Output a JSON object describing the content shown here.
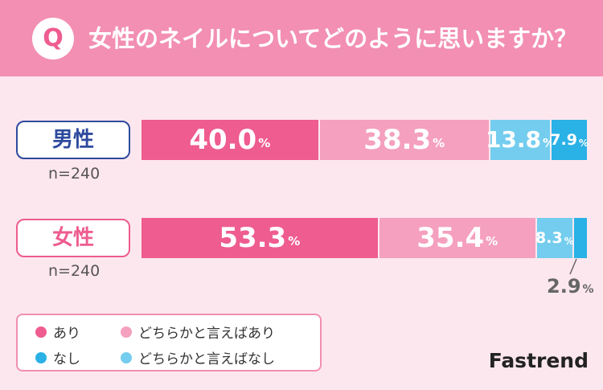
{
  "header": {
    "badge": "Q",
    "title": "女性のネイルについてどのように思いますか？"
  },
  "colors": {
    "header_bg": "#f28fb2",
    "background": "#fde7ee",
    "ari": "#ee5c90",
    "dochira_ari": "#f4a0be",
    "dochira_nashi": "#74cdee",
    "nashi": "#2ab1e6"
  },
  "chart_data": {
    "type": "bar",
    "orientation": "horizontal",
    "stacked": true,
    "unit": "%",
    "categories": [
      "男性",
      "女性"
    ],
    "sample_sizes": [
      "n=240",
      "n=240"
    ],
    "series": [
      {
        "name": "あり",
        "values": [
          40.0,
          53.3
        ]
      },
      {
        "name": "どちらかと言えばあり",
        "values": [
          38.3,
          35.4
        ]
      },
      {
        "name": "どちらかと言えばなし",
        "values": [
          13.8,
          8.3
        ]
      },
      {
        "name": "なし",
        "values": [
          7.9,
          2.9
        ]
      }
    ],
    "labels": [
      [
        "40.0",
        "38.3",
        "13.8",
        "7.9"
      ],
      [
        "53.3",
        "35.4",
        "8.3",
        "2.9"
      ]
    ],
    "legend_position": "bottom-left"
  },
  "legend": {
    "items": [
      {
        "label": "あり",
        "color": "#ee5c90"
      },
      {
        "label": "どちらかと言えばあり",
        "color": "#f4a0be"
      },
      {
        "label": "なし",
        "color": "#2ab1e6"
      },
      {
        "label": "どちらかと言えばなし",
        "color": "#74cdee"
      }
    ]
  },
  "brand": "Fastrend"
}
